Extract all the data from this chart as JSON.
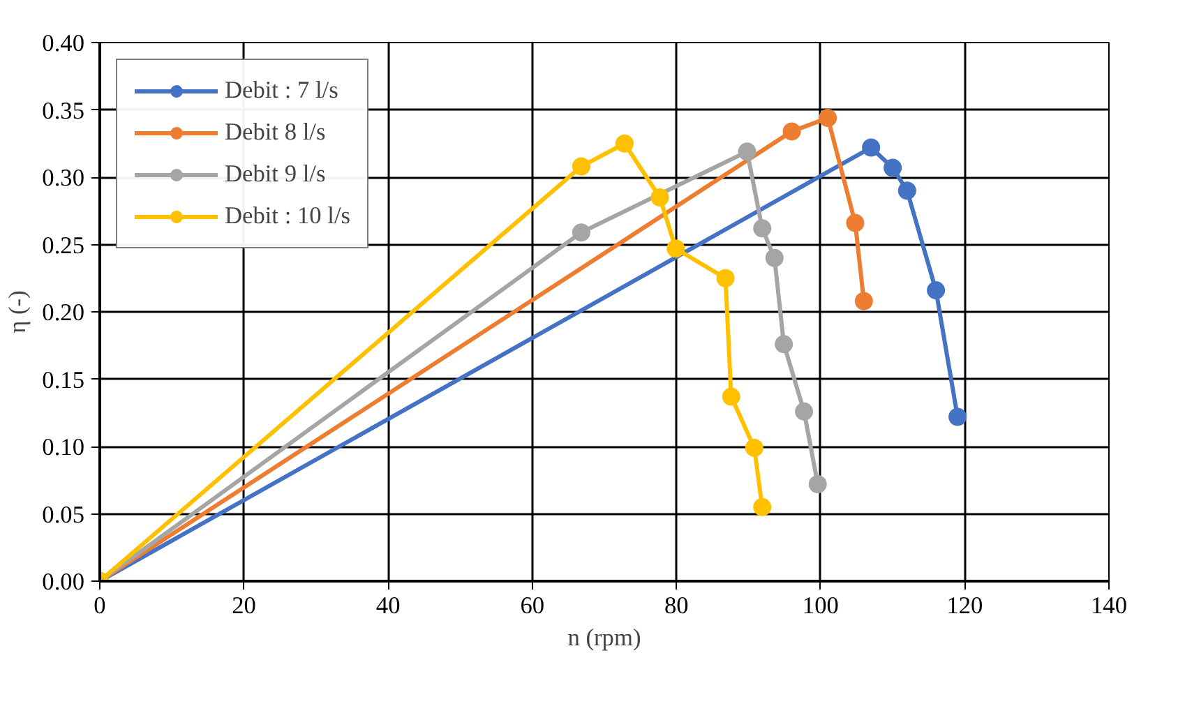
{
  "chart_data": {
    "type": "line",
    "xlabel": "n (rpm)",
    "ylabel": "η (-)",
    "xlim": [
      0,
      140
    ],
    "xticks": [
      0,
      20,
      40,
      60,
      80,
      100,
      120,
      140
    ],
    "ylim": [
      0,
      0.4
    ],
    "yticks": [
      {
        "value": 0,
        "label": "0.00"
      },
      {
        "value": 0.05,
        "label": "0.05"
      },
      {
        "value": 0.1,
        "label": "0.10"
      },
      {
        "value": 0.15,
        "label": "0.15"
      },
      {
        "value": 0.2,
        "label": "0.20"
      },
      {
        "value": 0.25,
        "label": "0.25"
      },
      {
        "value": 0.3,
        "label": "0.30"
      },
      {
        "value": 0.35,
        "label": "0.35"
      },
      {
        "value": 0.4,
        "label": "0.40"
      }
    ],
    "grid": true,
    "legend": "top left",
    "marker": "circle",
    "line_style": "solid",
    "series": [
      {
        "name": "Debit : 7 l/s",
        "color": "#4472c4",
        "x": [
          0,
          107,
          110,
          112,
          116,
          119
        ],
        "values": [
          0,
          0.322,
          0.307,
          0.29,
          0.216,
          0.122
        ]
      },
      {
        "name": "Debit 8 l/s",
        "color": "#ed7d31",
        "x": [
          0,
          96,
          101,
          104.8,
          106
        ],
        "values": [
          0,
          0.334,
          0.344,
          0.266,
          0.208
        ]
      },
      {
        "name": "Debit 9 l/s",
        "color": "#a5a5a5",
        "x": [
          0,
          66.8,
          89.8,
          91.9,
          93.6,
          94.9,
          97.7,
          99.6
        ],
        "values": [
          0,
          0.259,
          0.319,
          0.262,
          0.24,
          0.176,
          0.126,
          0.072
        ]
      },
      {
        "name": "Debit : 10 l/s",
        "color": "#ffc000",
        "x": [
          0,
          66.8,
          72.8,
          77.7,
          79.9,
          86.8,
          87.6,
          90.8,
          91.9
        ],
        "values": [
          0,
          0.308,
          0.325,
          0.285,
          0.247,
          0.225,
          0.137,
          0.099,
          0.055
        ]
      }
    ]
  }
}
